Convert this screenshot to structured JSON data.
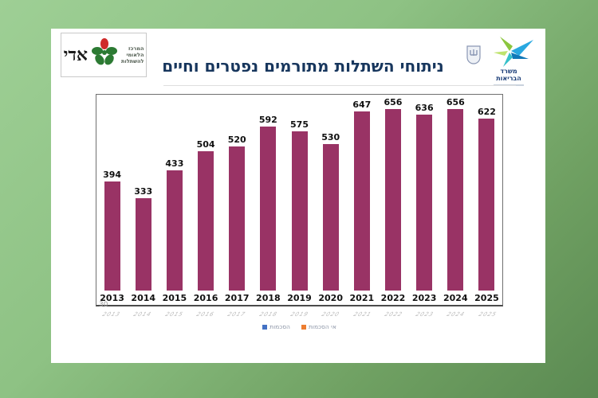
{
  "title": "ניתוחי השתלות מתורמים נפטרים וחיים",
  "title_color": "#17365d",
  "header": {
    "adi_logo": {
      "org_lines": [
        "המרכז",
        "הלאומי",
        "להשתלות"
      ],
      "name": "אדי"
    },
    "moh_logo": {
      "ministry_lines": [
        "משרד",
        "הבריאות"
      ]
    }
  },
  "chart_data": {
    "type": "bar",
    "categories": [
      "2013",
      "2014",
      "2015",
      "2016",
      "2017",
      "2018",
      "2019",
      "2020",
      "2021",
      "2022",
      "2023",
      "2024",
      "2025"
    ],
    "values": [
      394,
      333,
      433,
      504,
      520,
      592,
      575,
      530,
      647,
      656,
      636,
      656,
      622
    ],
    "title": "ניתוחי השתלות מתורמים נפטרים וחיים",
    "xlabel": "",
    "ylabel": "",
    "ylim": [
      0,
      710
    ],
    "grid": false,
    "bar_color": "#993365",
    "value_labels": true,
    "legend_position": "none"
  },
  "ghost_artifacts": {
    "axis_value": "30",
    "legend_items": [
      {
        "label": "הסכמות",
        "color": "#4472c4"
      },
      {
        "label": "אי הסכמות",
        "color": "#ed7d31"
      }
    ]
  }
}
